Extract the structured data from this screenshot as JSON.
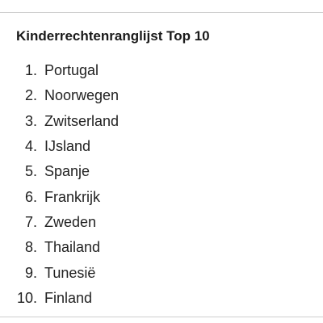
{
  "title": "Kinderrechtenranglijst Top 10",
  "items": [
    {
      "rank": "1.",
      "country": "Portugal"
    },
    {
      "rank": "2.",
      "country": "Noorwegen"
    },
    {
      "rank": "3.",
      "country": "Zwitserland"
    },
    {
      "rank": "4.",
      "country": "IJsland"
    },
    {
      "rank": "5.",
      "country": "Spanje"
    },
    {
      "rank": "6.",
      "country": "Frankrijk"
    },
    {
      "rank": "7.",
      "country": "Zweden"
    },
    {
      "rank": "8.",
      "country": "Thailand"
    },
    {
      "rank": "9.",
      "country": "Tunesië"
    },
    {
      "rank": "10.",
      "country": "Finland"
    }
  ]
}
